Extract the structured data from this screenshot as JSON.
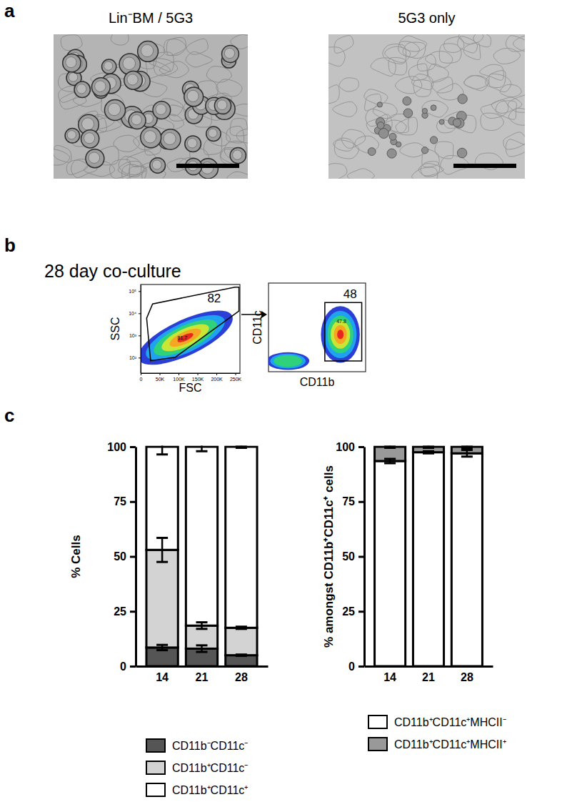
{
  "panels": [
    "a",
    "b",
    "c"
  ],
  "panel_a": {
    "images": [
      {
        "title": "Lin⁻BM / 5G3"
      },
      {
        "title": "5G3 only"
      }
    ]
  },
  "panel_b": {
    "title": "28 day co-culture",
    "plots": [
      {
        "x_label": "FSC",
        "y_label": "SSC",
        "log": "y",
        "xlim": [
          0,
          262144
        ],
        "xticks": [
          0,
          {
            "value": 50000,
            "label": "50K"
          },
          {
            "value": 100000,
            "label": "100K"
          },
          {
            "value": 150000,
            "label": "150K"
          },
          {
            "value": 200000,
            "label": "200K"
          },
          {
            "value": 250000,
            "label": "250K"
          }
        ],
        "ylim": [
          20,
          200000
        ],
        "yticks": [
          {
            "value": 100,
            "label": "10²"
          },
          {
            "value": 1000,
            "label": "10³"
          },
          {
            "value": 10000,
            "label": "10⁴"
          },
          {
            "value": 100000,
            "label": "10⁵"
          }
        ],
        "gate": 82,
        "gate_detail": 81.7
      },
      {
        "x_label": "CD11b",
        "y_label": "CD11c",
        "gate": 48,
        "gate_detail": 47.8
      }
    ]
  },
  "chart_data": [
    {
      "type": "bar",
      "stacked": true,
      "legend": "bottom",
      "categories": [
        "14",
        "21",
        "28"
      ],
      "y_label": "% Cells",
      "ylim": [
        0,
        100
      ],
      "yticks": [
        0,
        25,
        50,
        75,
        100
      ],
      "series": [
        {
          "name": "CD11b⁻CD11c⁻",
          "color": "#555555",
          "values": [
            8.5,
            8,
            5
          ],
          "errors": [
            1.2,
            1.5,
            0.3
          ]
        },
        {
          "name": "CD11b⁺CD11c⁻",
          "color": "#d3d3d3",
          "values": [
            44.5,
            10.5,
            12.5
          ],
          "errors": [
            5.5,
            1.5,
            0.5
          ]
        },
        {
          "name": "CD11b⁺CD11c⁺",
          "color": "#ffffff",
          "values": [
            47,
            81.5,
            82.5
          ],
          "errors": [
            3.5,
            2,
            0.5
          ]
        }
      ]
    },
    {
      "type": "bar",
      "stacked": true,
      "legend": "bottom",
      "categories": [
        "14",
        "21",
        "28"
      ],
      "y_label": "% amongst CD11b⁺CD11c⁺ cells",
      "ylim": [
        0,
        100
      ],
      "yticks": [
        0,
        25,
        50,
        75,
        100
      ],
      "series": [
        {
          "name": "CD11b⁺CD11c⁺MHCII⁻",
          "color": "#ffffff",
          "values": [
            93.5,
            97.5,
            97
          ],
          "errors": [
            1,
            0.5,
            1.5
          ]
        },
        {
          "name": "CD11b⁺CD11c⁺MHCII⁺",
          "color": "#999999",
          "values": [
            6.5,
            2.5,
            3
          ],
          "errors": [
            0.5,
            0.5,
            0.5
          ]
        }
      ]
    }
  ]
}
